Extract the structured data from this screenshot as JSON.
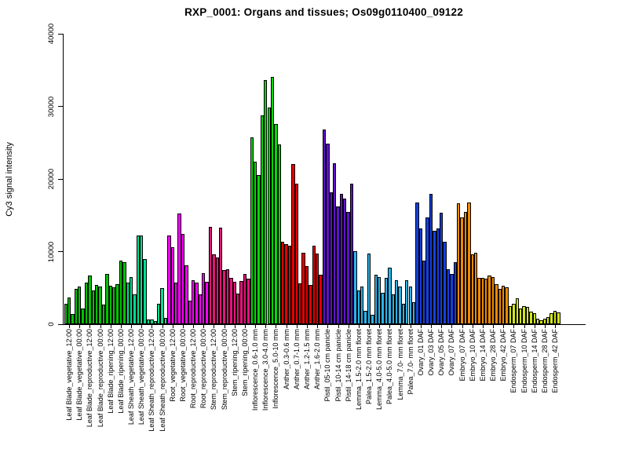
{
  "chart_data": {
    "type": "bar",
    "title": "RXP_0001: Organs and tissues; Os09g0110400_09122",
    "xlabel": "",
    "ylabel": "Cy3 signal intensity",
    "ylim": [
      0,
      40000
    ],
    "y_ticks": [
      0,
      10000,
      20000,
      30000,
      40000
    ],
    "grid": false,
    "legend": false,
    "bars_per_group": 3,
    "bar_outline_color": "#000000",
    "organ_colors": {
      "leaf_blade": "#00C300",
      "leaf_sheath": "#00E090",
      "root": "#FF00FF",
      "stem": "#E5137A",
      "inflorescence": "#00DC00",
      "anther": "#E30000",
      "pistil": "#5E12C8",
      "lemma_palea": "#2BB3E8",
      "ovary": "#1440E0",
      "embryo": "#F08A00",
      "endosperm": "#D2E619"
    },
    "groups": [
      {
        "label": "Leaf Blade_vegetative_12:00",
        "organ": "leaf_blade",
        "values": [
          2800,
          3650,
          1430
        ]
      },
      {
        "label": "Leaf Blade_vegetative_00:00",
        "organ": "leaf_blade",
        "values": [
          4900,
          5170,
          2200
        ]
      },
      {
        "label": "Leaf Blade_reproductive_12:00",
        "organ": "leaf_blade",
        "values": [
          5700,
          6700,
          4600
        ]
      },
      {
        "label": "Leaf Blade_reproductive_00:00",
        "organ": "leaf_blade",
        "values": [
          5400,
          5200,
          2750
        ]
      },
      {
        "label": "Leaf Blade_ripening_12:00",
        "organ": "leaf_blade",
        "values": [
          6900,
          5250,
          5100
        ]
      },
      {
        "label": "Leaf Blade_ripening_00:00",
        "organ": "leaf_blade",
        "values": [
          5460,
          8770,
          8520
        ]
      },
      {
        "label": "Leaf Sheath_vegetative_12:00",
        "organ": "leaf_sheath",
        "values": [
          5710,
          6500,
          4080
        ]
      },
      {
        "label": "Leaf Sheath_vegetative_00:00",
        "organ": "leaf_sheath",
        "values": [
          12270,
          12200,
          9020
        ]
      },
      {
        "label": "Leaf Sheath_reproductive_12:00",
        "organ": "leaf_sheath",
        "values": [
          620,
          700,
          380
        ]
      },
      {
        "label": "Leaf Sheath_reproductive_00:00",
        "organ": "leaf_sheath",
        "values": [
          2820,
          4980,
          830
        ]
      },
      {
        "label": "Root_vegetative_12:00",
        "organ": "root",
        "values": [
          12270,
          10580,
          5700
        ]
      },
      {
        "label": "Root_vegetative_00:00",
        "organ": "root",
        "values": [
          15270,
          12380,
          8060
        ]
      },
      {
        "label": "Root_reproductive_12:00",
        "organ": "root",
        "values": [
          3250,
          6000,
          5780
        ]
      },
      {
        "label": "Root_reproductive_00:00",
        "organ": "root",
        "values": [
          4080,
          7040,
          5890
        ]
      },
      {
        "label": "Stem_reproductive_12:00",
        "organ": "stem",
        "values": [
          13360,
          9670,
          9210
        ]
      },
      {
        "label": "Stem_reproductive_00:00",
        "organ": "stem",
        "values": [
          13290,
          7410,
          7520
        ]
      },
      {
        "label": "Stem_ripening_12:00",
        "organ": "stem",
        "values": [
          6330,
          5890,
          4270
        ]
      },
      {
        "label": "Stem_ripening_00:00",
        "organ": "stem",
        "values": [
          5960,
          6870,
          6250
        ]
      },
      {
        "label": "Inflorescence_0.6-1.0 mm",
        "organ": "inflorescence",
        "values": [
          25740,
          22390,
          20580
        ]
      },
      {
        "label": "Inflorescence_3.0-4.0 mm",
        "organ": "inflorescence",
        "values": [
          28810,
          33570,
          29830
        ]
      },
      {
        "label": "Inflorescence_5.0-10 mm",
        "organ": "inflorescence",
        "values": [
          34050,
          27550,
          24770
        ]
      },
      {
        "label": "Anther_0.3-0.6 mm",
        "organ": "anther",
        "values": [
          11350,
          11000,
          10850
        ]
      },
      {
        "label": "Anther_0.7-1.0 mm",
        "organ": "anther",
        "values": [
          22030,
          19350,
          5630
        ]
      },
      {
        "label": "Anther_1.2-1.5 mm",
        "organ": "anther",
        "values": [
          9860,
          7950,
          5420
        ]
      },
      {
        "label": "Anther_1.6-2.0 mm",
        "organ": "anther",
        "values": [
          10830,
          9750,
          6790
        ]
      },
      {
        "label": "Pistil_05-10 cm panicle",
        "organ": "pistil",
        "values": [
          26830,
          24840,
          18160
        ]
      },
      {
        "label": "Pistil_10-14 cm panicle",
        "organ": "pistil",
        "values": [
          22140,
          16180,
          17980
        ]
      },
      {
        "label": "Pistil_14-18 cm panicle",
        "organ": "pistil",
        "values": [
          17260,
          15460,
          19320
        ]
      },
      {
        "label": "Lemma_1.5-2.0 mm floret",
        "organ": "lemma_palea",
        "values": [
          10040,
          4700,
          5170
        ]
      },
      {
        "label": "Palea_1.5-2.0 mm floret",
        "organ": "lemma_palea",
        "values": [
          1810,
          9680,
          1270
        ]
      },
      {
        "label": "Lemma_4.0-5.0 mm floret",
        "organ": "lemma_palea",
        "values": [
          6790,
          6500,
          4330
        ]
      },
      {
        "label": "Palea_4.0-5.0 mm floret",
        "organ": "lemma_palea",
        "values": [
          6360,
          7730,
          4080
        ]
      },
      {
        "label": "Lemma_7.0- mm floret",
        "organ": "lemma_palea",
        "values": [
          6000,
          5170,
          2820
        ]
      },
      {
        "label": "Palea_7.0- mm floret",
        "organ": "lemma_palea",
        "values": [
          6000,
          5170,
          3000
        ]
      },
      {
        "label": "Ovary_01 DAF",
        "organ": "ovary",
        "values": [
          16790,
          13180,
          8710
        ]
      },
      {
        "label": "Ovary_03 DAF",
        "organ": "ovary",
        "values": [
          14730,
          17980,
          12820
        ]
      },
      {
        "label": "Ovary_05 DAF",
        "organ": "ovary",
        "values": [
          13180,
          15350,
          11370
        ]
      },
      {
        "label": "Ovary_07 DAF",
        "organ": "ovary",
        "values": [
          7520,
          6970,
          8490
        ]
      },
      {
        "label": "Embryo_07 DAF",
        "organ": "embryo",
        "values": [
          16610,
          14730,
          15460
        ]
      },
      {
        "label": "Embryo_10 DAF",
        "organ": "embryo",
        "values": [
          16760,
          9570,
          9790
        ]
      },
      {
        "label": "Embryo_14 DAF",
        "organ": "embryo",
        "values": [
          6400,
          6350,
          6300
        ]
      },
      {
        "label": "Embryo_28 DAF",
        "organ": "embryo",
        "values": [
          6680,
          6500,
          5530
        ]
      },
      {
        "label": "Embryo_42 DAF",
        "organ": "embryo",
        "values": [
          4910,
          5350,
          5060
        ]
      },
      {
        "label": "Endosperm_07 DAF",
        "organ": "endosperm",
        "values": [
          2500,
          2800,
          3620
        ]
      },
      {
        "label": "Endosperm_10 DAF",
        "organ": "endosperm",
        "values": [
          2170,
          2530,
          2380
        ]
      },
      {
        "label": "Endosperm_14 DAF",
        "organ": "endosperm",
        "values": [
          1730,
          1480,
          720
        ]
      },
      {
        "label": "Endosperm_28 DAF",
        "organ": "endosperm",
        "values": [
          580,
          720,
          940
        ]
      },
      {
        "label": "Endosperm_42 DAF",
        "organ": "endosperm",
        "values": [
          1560,
          1810,
          1660
        ]
      }
    ]
  }
}
